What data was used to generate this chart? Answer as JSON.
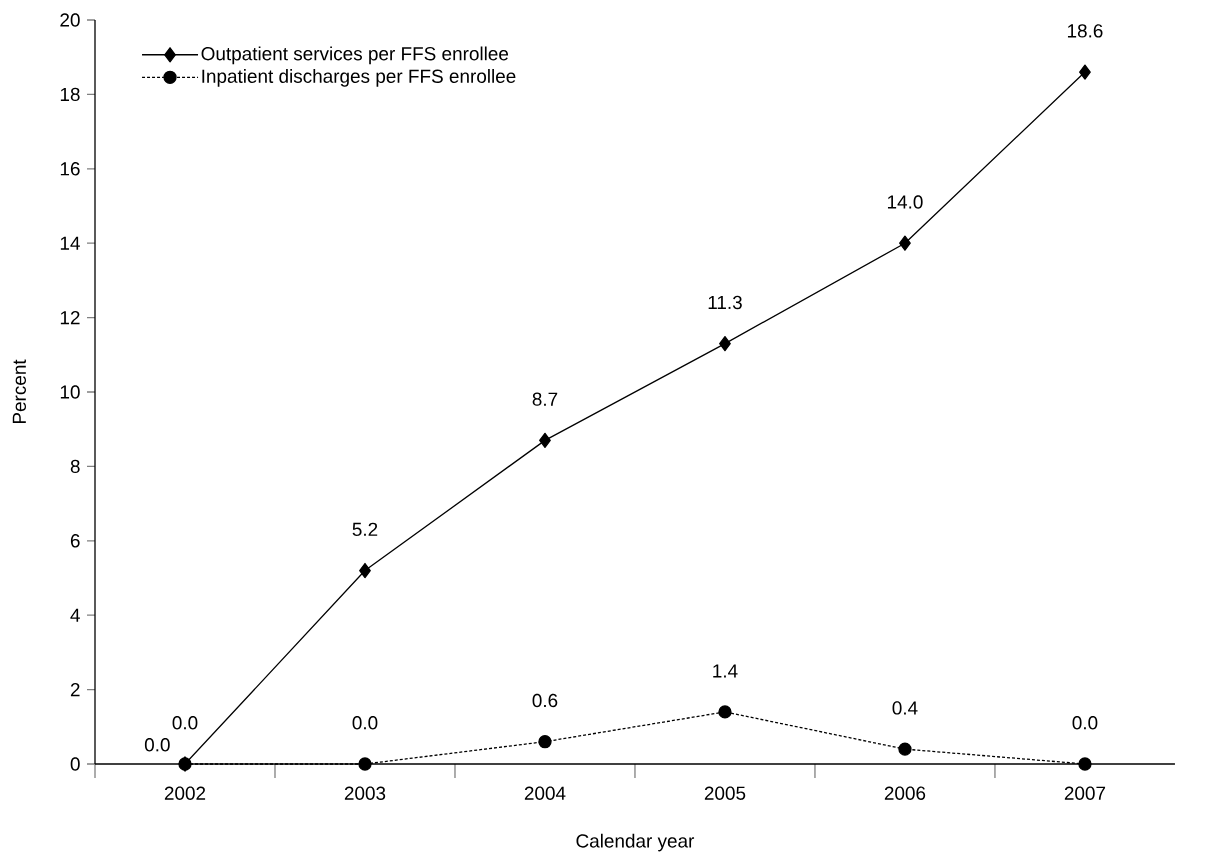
{
  "chart_data": {
    "type": "line",
    "xlabel": "Calendar year",
    "ylabel": "Percent",
    "categories": [
      "2002",
      "2003",
      "2004",
      "2005",
      "2006",
      "2007"
    ],
    "series": [
      {
        "name": "Outpatient services per FFS enrollee",
        "color": "#000000",
        "marker": "diamond",
        "line_style": "solid",
        "values": [
          0.0,
          5.2,
          8.7,
          11.3,
          14.0,
          18.6
        ],
        "value_labels": [
          "0.0",
          "5.2",
          "8.7",
          "11.3",
          "14.0",
          "18.6"
        ]
      },
      {
        "name": "Inpatient discharges per FFS enrollee",
        "color": "#000000",
        "marker": "circle",
        "line_style": "dashed",
        "values": [
          0.0,
          0.0,
          0.6,
          1.4,
          0.4,
          0.0
        ],
        "value_labels": [
          "0.0",
          "0.0",
          "0.6",
          "1.4",
          "0.4",
          "0.0"
        ]
      }
    ],
    "ylim": [
      0,
      20
    ],
    "yticks": [
      0,
      2,
      4,
      6,
      8,
      10,
      12,
      14,
      16,
      18,
      20
    ],
    "grid": false,
    "legend": "top left"
  }
}
